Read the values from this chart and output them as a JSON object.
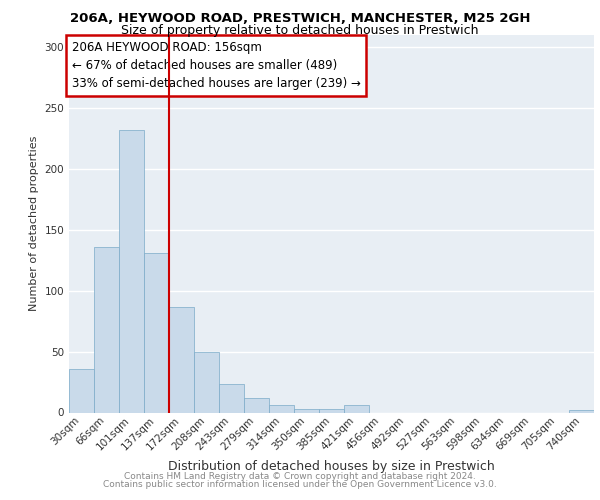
{
  "title": "206A, HEYWOOD ROAD, PRESTWICH, MANCHESTER, M25 2GH",
  "subtitle": "Size of property relative to detached houses in Prestwich",
  "xlabel": "Distribution of detached houses by size in Prestwich",
  "ylabel": "Number of detached properties",
  "categories": [
    "30sqm",
    "66sqm",
    "101sqm",
    "137sqm",
    "172sqm",
    "208sqm",
    "243sqm",
    "279sqm",
    "314sqm",
    "350sqm",
    "385sqm",
    "421sqm",
    "456sqm",
    "492sqm",
    "527sqm",
    "563sqm",
    "598sqm",
    "634sqm",
    "669sqm",
    "705sqm",
    "740sqm"
  ],
  "values": [
    36,
    136,
    232,
    131,
    87,
    50,
    23,
    12,
    6,
    3,
    3,
    6,
    0,
    0,
    0,
    0,
    0,
    0,
    0,
    0,
    2
  ],
  "bar_color": "#c9daea",
  "bar_edge_color": "#7aaac8",
  "red_line_x": 3.5,
  "annotation_title": "206A HEYWOOD ROAD: 156sqm",
  "annotation_line1": "← 67% of detached houses are smaller (489)",
  "annotation_line2": "33% of semi-detached houses are larger (239) →",
  "annotation_box_color": "#ffffff",
  "annotation_box_edge": "#cc0000",
  "ylim": [
    0,
    310
  ],
  "footer1": "Contains HM Land Registry data © Crown copyright and database right 2024.",
  "footer2": "Contains public sector information licensed under the Open Government Licence v3.0.",
  "bg_color": "#e8eef4",
  "grid_color": "#ffffff",
  "title_fontsize": 9.5,
  "subtitle_fontsize": 9,
  "tick_fontsize": 7.5,
  "ylabel_fontsize": 8,
  "xlabel_fontsize": 9,
  "footer_fontsize": 6.5,
  "ann_fontsize": 8.5
}
